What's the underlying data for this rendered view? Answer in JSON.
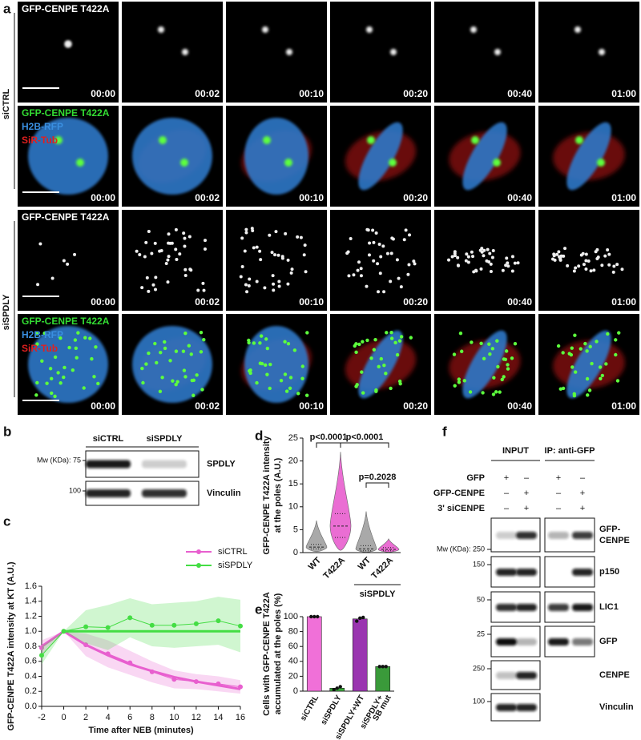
{
  "panel_labels": [
    "a",
    "b",
    "c",
    "d",
    "e",
    "f"
  ],
  "panel_a": {
    "conditions": [
      "siCTRL",
      "siSPDLY"
    ],
    "rows": [
      {
        "channels": [
          {
            "label": "GFP-CENPE T422A",
            "color": "#ffffff"
          }
        ],
        "timepoints": [
          "00:00",
          "00:02",
          "00:10",
          "00:20",
          "00:40",
          "01:00"
        ]
      },
      {
        "channels": [
          {
            "label": "GFP-CENPE T422A",
            "color": "#33dd33"
          },
          {
            "label": "H2B-RFP",
            "color": "#3a8fe0"
          },
          {
            "label": "SiR-Tub",
            "color": "#e02020"
          }
        ],
        "timepoints": [
          "00:00",
          "00:02",
          "00:10",
          "00:20",
          "00:40",
          "01:00"
        ]
      },
      {
        "channels": [
          {
            "label": "GFP-CENPE T422A",
            "color": "#ffffff"
          }
        ],
        "timepoints": [
          "00:00",
          "00:02",
          "00:10",
          "00:20",
          "00:40",
          "01:00"
        ]
      },
      {
        "channels": [
          {
            "label": "GFP-CENPE T422A",
            "color": "#33dd33"
          },
          {
            "label": "H2B-RFP",
            "color": "#3a8fe0"
          },
          {
            "label": "SiR-Tub",
            "color": "#e02020"
          }
        ],
        "timepoints": [
          "00:00",
          "00:02",
          "00:10",
          "00:20",
          "00:40",
          "01:00"
        ]
      }
    ]
  },
  "panel_b": {
    "lanes": [
      "siCTRL",
      "siSPDLY"
    ],
    "blots": [
      {
        "protein": "SPDLY",
        "marker": "Mw (KDa): 75"
      },
      {
        "protein": "Vinculin",
        "marker": "100"
      }
    ]
  },
  "panel_f": {
    "headers": [
      "INPUT",
      "IP: anti-GFP"
    ],
    "conditions": [
      {
        "label": "GFP",
        "signs": [
          "+",
          "–",
          "+",
          "–"
        ]
      },
      {
        "label": "GFP-CENPE",
        "signs": [
          "–",
          "+",
          "–",
          "+"
        ]
      },
      {
        "label": "3' siCENPE",
        "signs": [
          "–",
          "+",
          "–",
          "+"
        ]
      }
    ],
    "blots": [
      {
        "protein": [
          "GFP-",
          "CENPE"
        ],
        "marker": "Mw (KDa): 250"
      },
      {
        "protein": [
          "p150"
        ],
        "marker": "150"
      },
      {
        "protein": [
          "LIC1"
        ],
        "marker": "50"
      },
      {
        "protein": [
          "GFP"
        ],
        "marker": "25"
      },
      {
        "protein": [
          "CENPE"
        ],
        "marker": "250"
      },
      {
        "protein": [
          "Vinculin"
        ],
        "marker": "100"
      }
    ]
  },
  "chart_data": [
    {
      "type": "line",
      "xlabel": "Time after NEB (minutes)",
      "ylabel": "GFP-CENPE T422A intensity at KT (A.U.)",
      "x": [
        -2,
        0,
        2,
        4,
        6,
        8,
        10,
        12,
        14,
        16
      ],
      "xlim": [
        -2,
        16
      ],
      "xticks": [
        -2,
        0,
        2,
        4,
        6,
        8,
        10,
        12,
        14,
        16
      ],
      "ylim": [
        0,
        1.6
      ],
      "yticks": [
        {
          "value": 0,
          "label": "0.0"
        },
        0.2,
        0.4,
        0.6,
        0.8,
        {
          "value": 1,
          "label": "1.0"
        },
        1.2,
        1.4,
        1.6
      ],
      "legend": "upper right",
      "series": [
        {
          "name": "siCTRL",
          "color": "#e85fcf",
          "values": [
            0.78,
            1.0,
            0.82,
            0.7,
            0.58,
            0.46,
            0.36,
            0.33,
            0.3,
            0.26
          ],
          "sd": [
            0.1,
            0.0,
            0.15,
            0.18,
            0.16,
            0.14,
            0.12,
            0.1,
            0.1,
            0.09
          ],
          "fit": [
            0.8,
            1.0,
            0.82,
            0.68,
            0.56,
            0.47,
            0.39,
            0.33,
            0.28,
            0.23
          ]
        },
        {
          "name": "siSPDLY",
          "color": "#44dd44",
          "values": [
            0.68,
            1.0,
            1.06,
            1.05,
            1.18,
            1.08,
            1.08,
            1.1,
            1.14,
            1.07
          ],
          "sd": [
            0.12,
            0.0,
            0.22,
            0.3,
            0.26,
            0.28,
            0.3,
            0.3,
            0.32,
            0.35
          ],
          "fit": [
            null,
            1.0,
            1.0,
            1.0,
            1.0,
            1.0,
            1.0,
            1.0,
            1.0,
            1.0
          ]
        }
      ]
    },
    {
      "type": "violin",
      "ylabel": [
        "GFP-CENPE T422A intensity",
        "at the poles (A.U.)"
      ],
      "categories": [
        "WT",
        "T422A",
        "WT",
        "T422A"
      ],
      "group_label": "siSPDLY",
      "colors": [
        "#a0a0a0",
        "#e85fcf",
        "#a0a0a0",
        "#e85fcf"
      ],
      "min": [
        0.2,
        0.5,
        0.1,
        0.1
      ],
      "q1": [
        0.8,
        3.3,
        0.4,
        0.4
      ],
      "median": [
        1.2,
        5.8,
        0.8,
        0.7
      ],
      "q3": [
        1.8,
        8.5,
        1.5,
        1.1
      ],
      "max": [
        7,
        22,
        9,
        3
      ],
      "ylim": [
        0,
        25
      ],
      "yticks": [
        0,
        5,
        10,
        15,
        20,
        25
      ],
      "annotations": [
        "p<0.0001",
        "p<0.0001",
        "p=0.2028"
      ]
    },
    {
      "type": "bar",
      "ylabel": [
        "Cells with GFP-CENPE T422A",
        "accumulated at the poles (%)"
      ],
      "categories": [
        [
          "siCTRL"
        ],
        [
          "siSPDLY"
        ],
        [
          "siSPDLY+WT"
        ],
        [
          "siSPDLY+",
          "SB mut"
        ]
      ],
      "values": [
        100,
        4,
        97,
        33
      ],
      "points": [
        [
          100,
          100,
          100
        ],
        [
          2,
          4,
          6
        ],
        [
          94,
          98,
          99
        ],
        [
          33,
          33,
          33
        ]
      ],
      "colors": [
        "#f070d8",
        "#3aaa3a",
        "#9a35b0",
        "#3a9a3a"
      ],
      "ylim": [
        0,
        100
      ],
      "yticks": [
        0,
        20,
        40,
        60,
        80,
        100
      ]
    }
  ]
}
